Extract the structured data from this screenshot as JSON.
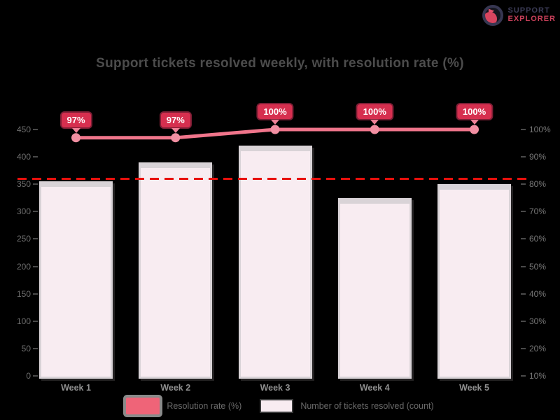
{
  "logo": {
    "brand_top": "SUPPORT",
    "brand_bottom": "EXPLORER"
  },
  "title": "Support tickets resolved weekly, with resolution rate (%)",
  "chart_data": {
    "type": "bar",
    "title": "Support tickets resolved weekly, with resolution rate (%)",
    "categories": [
      "Week 1",
      "Week 2",
      "Week 3",
      "Week 4",
      "Week 5"
    ],
    "series": [
      {
        "name": "Number of tickets resolved (count)",
        "type": "bar",
        "axis": "left",
        "values": [
          355,
          390,
          420,
          325,
          350
        ],
        "color": "#f8ecf1"
      },
      {
        "name": "Resolution rate (%)",
        "type": "line",
        "axis": "right",
        "values": [
          97,
          97,
          100,
          100,
          100
        ],
        "point_labels": [
          "97%",
          "97%",
          "100%",
          "100%",
          "100%"
        ],
        "color": "#f0758b",
        "marker_color": "#f28fa2"
      }
    ],
    "target_line": {
      "value": 360,
      "color": "#e8100c",
      "style": "dashed"
    },
    "left_axis": {
      "ticks": [
        "450",
        "400",
        "350",
        "300",
        "250",
        "200",
        "150",
        "100",
        "50",
        "0"
      ],
      "range": [
        0,
        450
      ]
    },
    "right_axis": {
      "ticks": [
        "100%",
        "90%",
        "80%",
        "70%",
        "60%",
        "50%",
        "40%",
        "30%",
        "20%",
        "10%"
      ],
      "range": [
        10,
        100
      ]
    },
    "grid": false,
    "legend_position": "bottom"
  },
  "legend": {
    "items": [
      {
        "label": "Resolution rate (%)",
        "swatch_color": "#ef6478"
      },
      {
        "label": "Number of tickets resolved (count)",
        "swatch_color": "#f8ecf1"
      }
    ]
  },
  "colors": {
    "background": "#000000",
    "title_text": "#4c4c4c",
    "bar_fill": "#f8ecf1",
    "bar_border": "#d9d3d7",
    "target_red": "#e8100c",
    "line_pink": "#f0758b",
    "badge_bg": "#d62f4f",
    "badge_border": "#7d1e35"
  }
}
